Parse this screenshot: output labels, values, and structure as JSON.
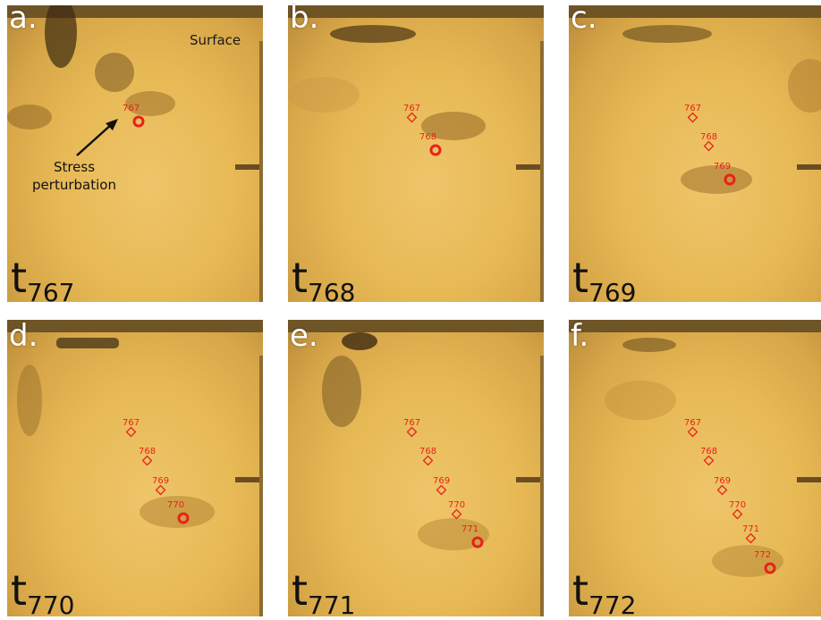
{
  "panels": [
    {
      "letter": "a.",
      "time_base": "t",
      "time_sub": "767",
      "markers": [
        {
          "label": "767",
          "current": true
        }
      ]
    },
    {
      "letter": "b.",
      "time_base": "t",
      "time_sub": "768",
      "markers": [
        {
          "label": "767",
          "current": false
        },
        {
          "label": "768",
          "current": true
        }
      ]
    },
    {
      "letter": "c.",
      "time_base": "t",
      "time_sub": "769",
      "markers": [
        {
          "label": "767",
          "current": false
        },
        {
          "label": "768",
          "current": false
        },
        {
          "label": "769",
          "current": true
        }
      ]
    },
    {
      "letter": "d.",
      "time_base": "t",
      "time_sub": "770",
      "markers": [
        {
          "label": "767",
          "current": false
        },
        {
          "label": "768",
          "current": false
        },
        {
          "label": "769",
          "current": false
        },
        {
          "label": "770",
          "current": true
        }
      ]
    },
    {
      "letter": "e.",
      "time_base": "t",
      "time_sub": "771",
      "markers": [
        {
          "label": "767",
          "current": false
        },
        {
          "label": "768",
          "current": false
        },
        {
          "label": "769",
          "current": false
        },
        {
          "label": "770",
          "current": false
        },
        {
          "label": "771",
          "current": true
        }
      ]
    },
    {
      "letter": "f.",
      "time_base": "t",
      "time_sub": "772",
      "markers": [
        {
          "label": "767",
          "current": false
        },
        {
          "label": "768",
          "current": false
        },
        {
          "label": "769",
          "current": false
        },
        {
          "label": "770",
          "current": false
        },
        {
          "label": "771",
          "current": false
        },
        {
          "label": "772",
          "current": true
        }
      ]
    }
  ],
  "annotations": {
    "surface": "Surface",
    "stress_line1": "Stress",
    "stress_line2": "perturbation"
  },
  "colors": {
    "marker": "#e8221a",
    "background_tone": "#e7b955"
  }
}
